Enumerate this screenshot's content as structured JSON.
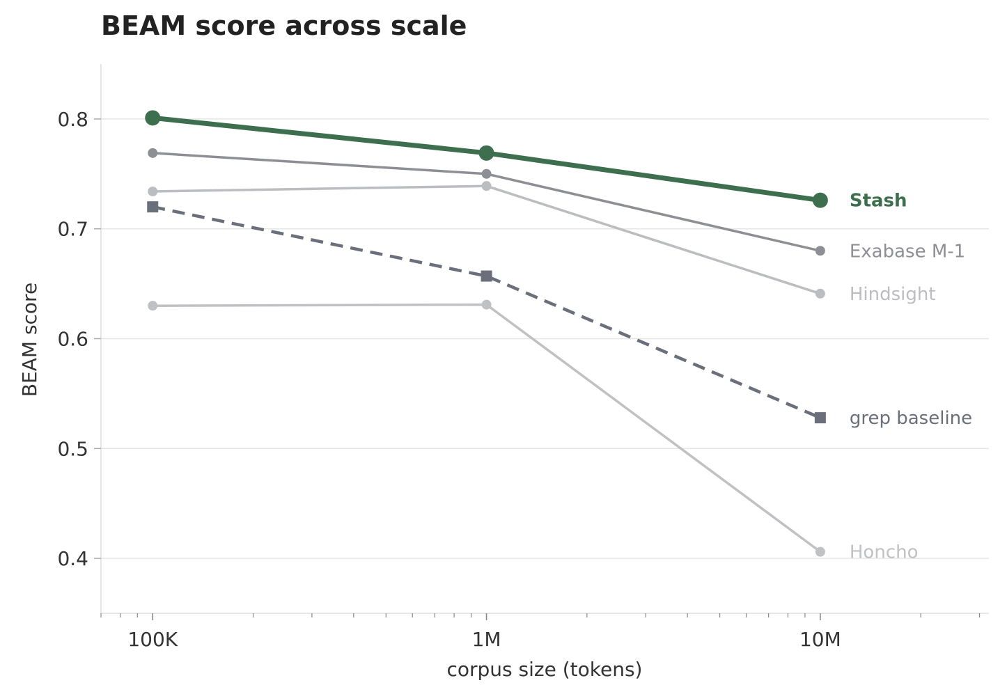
{
  "chart_data": {
    "type": "line",
    "title": "BEAM score across scale",
    "xlabel": "corpus size (tokens)",
    "ylabel": "BEAM score",
    "x_scale": "log",
    "x": [
      100000,
      1000000,
      10000000
    ],
    "x_tick_labels": [
      "100K",
      "1M",
      "10M"
    ],
    "xlim": [
      70000,
      32000000
    ],
    "ylim": [
      0.35,
      0.85
    ],
    "y_ticks": [
      0.4,
      0.5,
      0.6,
      0.7,
      0.8
    ],
    "y_tick_labels": [
      "0.4",
      "0.5",
      "0.6",
      "0.7",
      "0.8"
    ],
    "grid": "horizontal",
    "legend": "inline labels at line ends",
    "series": [
      {
        "name": "Honcho",
        "values": [
          0.63,
          0.631,
          0.406
        ],
        "color": "#c0c1c4",
        "marker": "circle",
        "dashed": false,
        "bold": false
      },
      {
        "name": "Hindsight",
        "values": [
          0.734,
          0.739,
          0.641
        ],
        "color": "#bcbdc0",
        "marker": "circle",
        "dashed": false,
        "bold": false
      },
      {
        "name": "grep baseline",
        "values": [
          0.72,
          0.657,
          0.528
        ],
        "color": "#6b6f7b",
        "marker": "square",
        "dashed": true,
        "bold": false
      },
      {
        "name": "Exabase M-1",
        "values": [
          0.769,
          0.75,
          0.68
        ],
        "color": "#8e8f94",
        "marker": "circle",
        "dashed": false,
        "bold": false
      },
      {
        "name": "Stash",
        "values": [
          0.801,
          0.769,
          0.726
        ],
        "color": "#3d6e4e",
        "marker": "circle",
        "dashed": false,
        "bold": true
      }
    ]
  }
}
